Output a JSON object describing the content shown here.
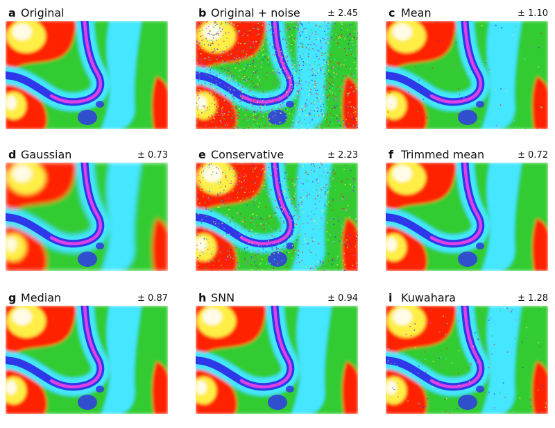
{
  "figure": {
    "colors": {
      "red": "#ff2200",
      "yellow": "#ffee44",
      "white": "#fffbe6",
      "green": "#33cc33",
      "cyan": "#44e6ff",
      "blue": "#2f38e8",
      "magenta": "#e040e6"
    },
    "panels": [
      {
        "letter": "a",
        "title": "Original",
        "error": "",
        "variant": "original"
      },
      {
        "letter": "b",
        "title": "Original + noise",
        "error": "± 2.45",
        "variant": "noise"
      },
      {
        "letter": "c",
        "title": "Mean",
        "error": "± 1.10",
        "variant": "mean"
      },
      {
        "letter": "d",
        "title": "Gaussian",
        "error": "± 0.73",
        "variant": "gaussian"
      },
      {
        "letter": "e",
        "title": "Conservative",
        "error": "± 2.23",
        "variant": "conservative"
      },
      {
        "letter": "f",
        "title": "Trimmed mean",
        "error": "± 0.72",
        "variant": "trimmed"
      },
      {
        "letter": "g",
        "title": "Median",
        "error": "± 0.87",
        "variant": "median"
      },
      {
        "letter": "h",
        "title": "SNN",
        "error": "± 0.94",
        "variant": "snn"
      },
      {
        "letter": "i",
        "title": "Kuwahara",
        "error": "± 1.28",
        "variant": "kuwahara"
      }
    ]
  }
}
